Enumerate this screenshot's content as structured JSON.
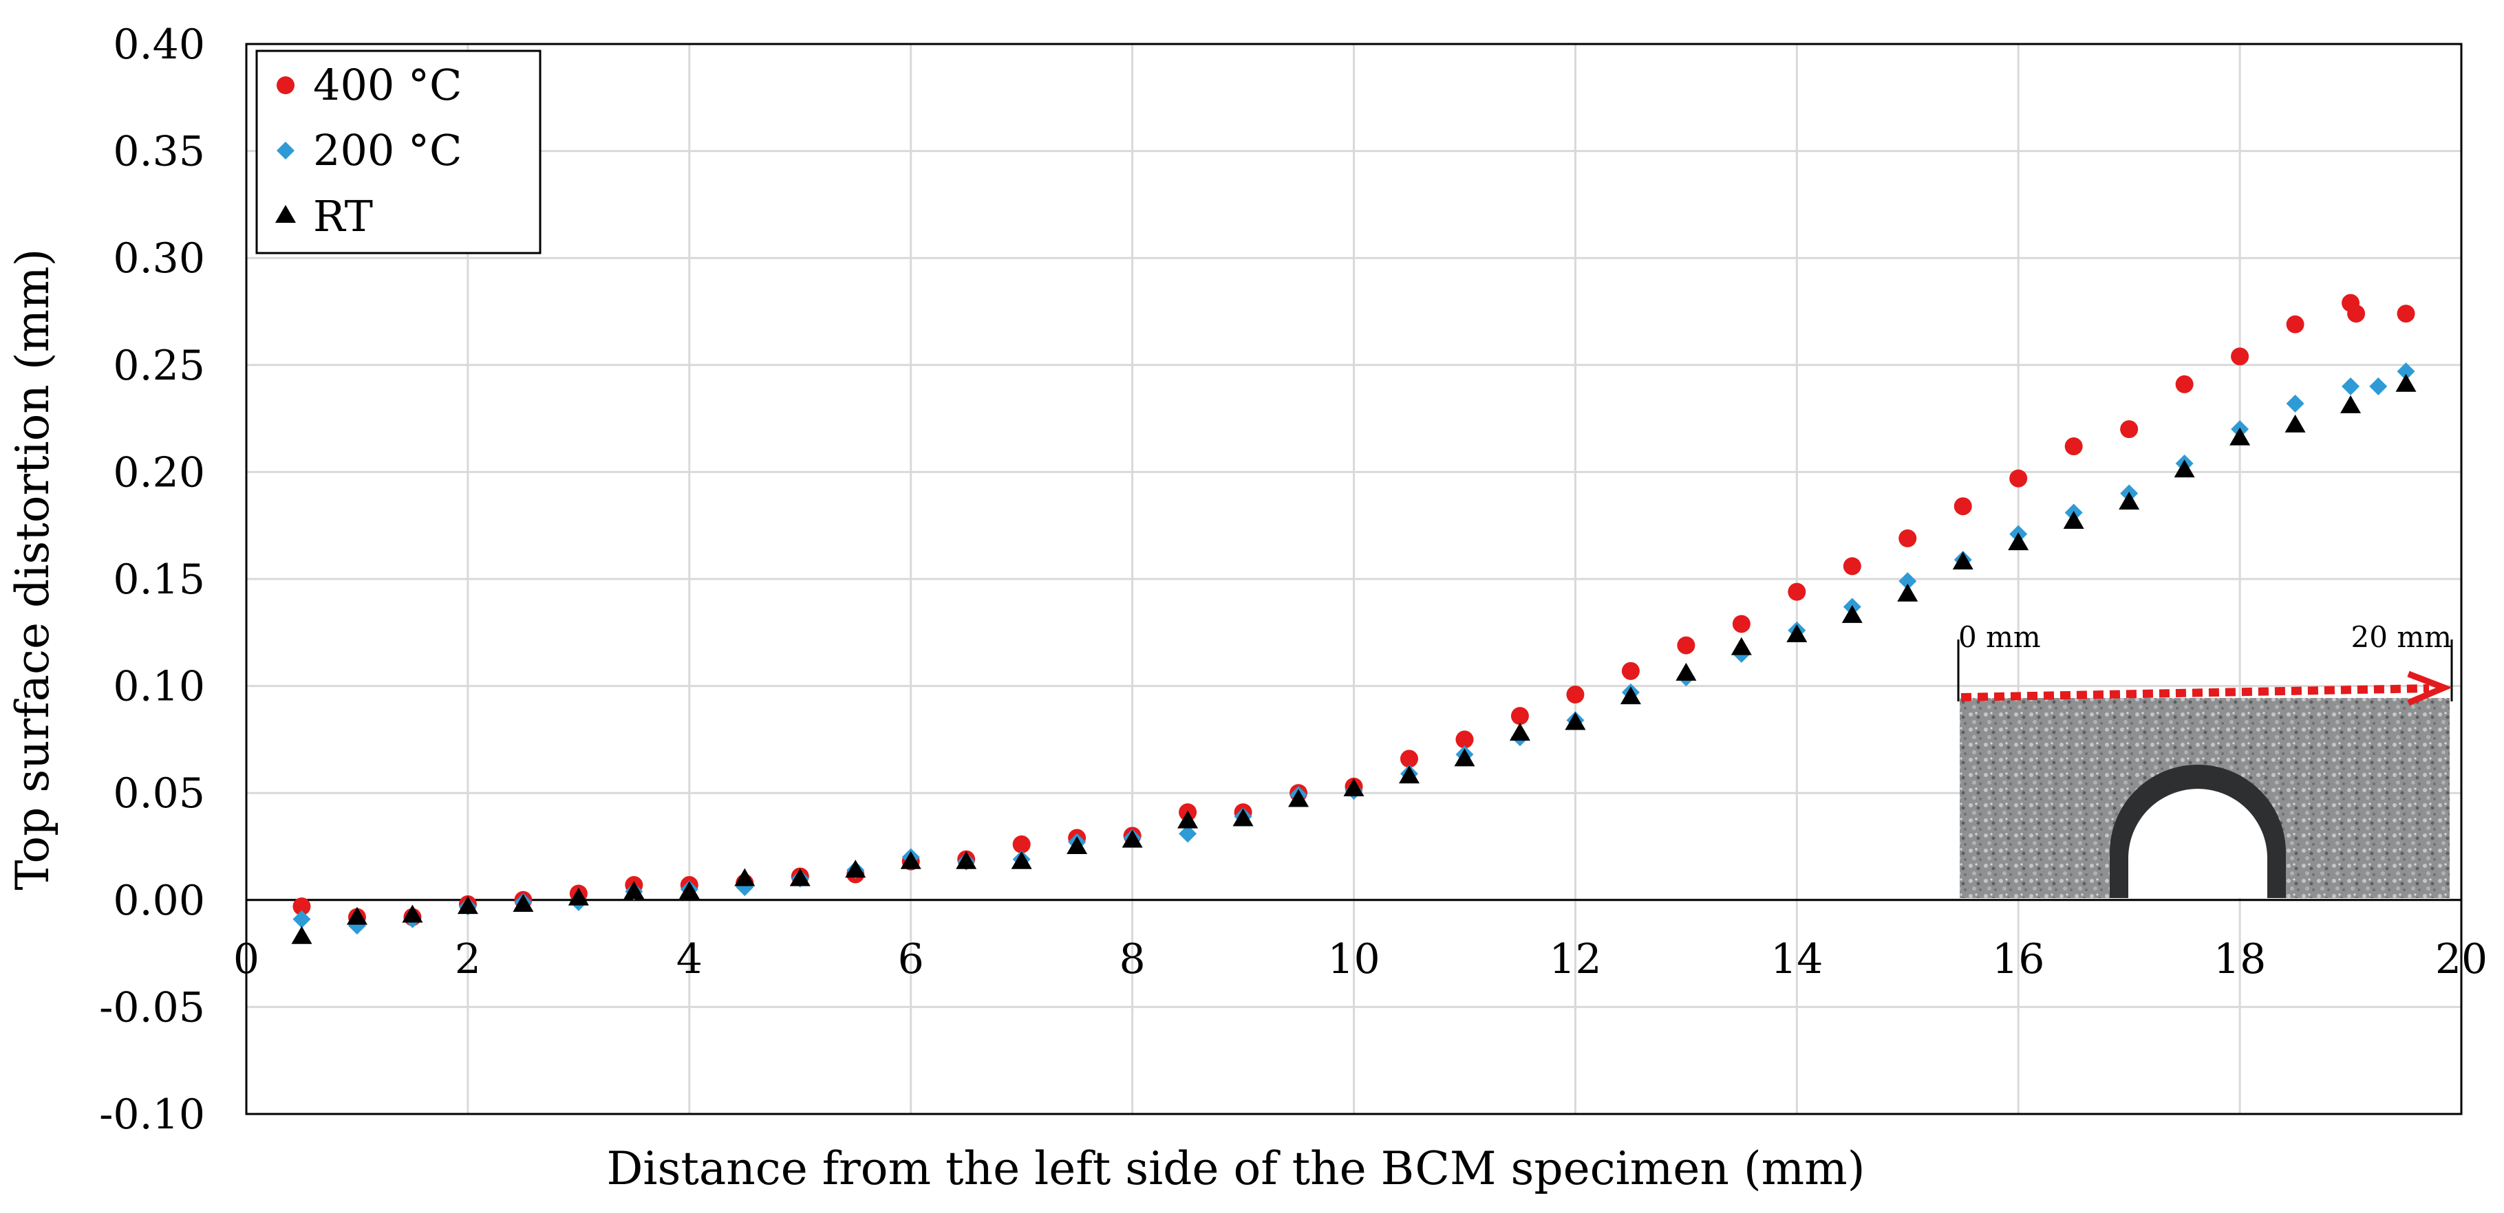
{
  "chart_data": {
    "type": "scatter",
    "title": "",
    "xlabel": "Distance from the left side of the BCM specimen (mm)",
    "ylabel": "Top surface distortion (mm)",
    "xlim": [
      0,
      20
    ],
    "ylim": [
      -0.1,
      0.4
    ],
    "x_ticks": [
      "0",
      "2",
      "4",
      "6",
      "8",
      "10",
      "12",
      "14",
      "16",
      "18",
      "20"
    ],
    "y_ticks": [
      "0.40",
      "0.35",
      "0.30",
      "0.25",
      "0.20",
      "0.15",
      "0.10",
      "0.05",
      "0.00",
      "-0.05",
      "-0.10"
    ],
    "grid": true,
    "legend_position": "top-left",
    "series": [
      {
        "name": "400 °C",
        "marker": "circle",
        "color": "#e41a1c",
        "points": [
          [
            0.5,
            -0.003
          ],
          [
            1.0,
            -0.008
          ],
          [
            1.5,
            -0.008
          ],
          [
            2.0,
            -0.002
          ],
          [
            2.5,
            0.0
          ],
          [
            3.0,
            0.003
          ],
          [
            3.5,
            0.007
          ],
          [
            4.0,
            0.007
          ],
          [
            4.5,
            0.008
          ],
          [
            5.0,
            0.011
          ],
          [
            5.5,
            0.012
          ],
          [
            6.0,
            0.018
          ],
          [
            6.5,
            0.019
          ],
          [
            7.0,
            0.026
          ],
          [
            7.5,
            0.029
          ],
          [
            8.0,
            0.03
          ],
          [
            8.5,
            0.041
          ],
          [
            9.0,
            0.041
          ],
          [
            9.5,
            0.05
          ],
          [
            10.0,
            0.053
          ],
          [
            10.5,
            0.066
          ],
          [
            11.0,
            0.075
          ],
          [
            11.5,
            0.086
          ],
          [
            12.0,
            0.096
          ],
          [
            12.5,
            0.107
          ],
          [
            13.0,
            0.119
          ],
          [
            13.5,
            0.129
          ],
          [
            14.0,
            0.144
          ],
          [
            14.5,
            0.156
          ],
          [
            15.0,
            0.169
          ],
          [
            15.5,
            0.184
          ],
          [
            16.0,
            0.197
          ],
          [
            16.5,
            0.212
          ],
          [
            17.0,
            0.22
          ],
          [
            17.5,
            0.241
          ],
          [
            18.0,
            0.254
          ],
          [
            18.5,
            0.269
          ],
          [
            19.0,
            0.279
          ],
          [
            19.05,
            0.274
          ],
          [
            19.5,
            0.274
          ]
        ]
      },
      {
        "name": "200 °C",
        "marker": "diamond",
        "color": "#2e9bd6",
        "points": [
          [
            0.5,
            -0.009
          ],
          [
            1.0,
            -0.012
          ],
          [
            1.5,
            -0.009
          ],
          [
            2.0,
            -0.003
          ],
          [
            2.5,
            -0.001
          ],
          [
            3.0,
            -0.001
          ],
          [
            3.5,
            0.004
          ],
          [
            4.0,
            0.005
          ],
          [
            4.5,
            0.006
          ],
          [
            5.0,
            0.01
          ],
          [
            5.5,
            0.014
          ],
          [
            6.0,
            0.02
          ],
          [
            6.5,
            0.018
          ],
          [
            7.0,
            0.019
          ],
          [
            7.5,
            0.027
          ],
          [
            8.0,
            0.029
          ],
          [
            8.5,
            0.031
          ],
          [
            9.0,
            0.039
          ],
          [
            9.5,
            0.049
          ],
          [
            10.0,
            0.051
          ],
          [
            10.5,
            0.059
          ],
          [
            11.0,
            0.068
          ],
          [
            11.5,
            0.076
          ],
          [
            12.0,
            0.084
          ],
          [
            12.5,
            0.097
          ],
          [
            13.0,
            0.104
          ],
          [
            13.5,
            0.115
          ],
          [
            14.0,
            0.126
          ],
          [
            14.5,
            0.137
          ],
          [
            15.0,
            0.149
          ],
          [
            15.5,
            0.159
          ],
          [
            16.0,
            0.171
          ],
          [
            16.5,
            0.181
          ],
          [
            17.0,
            0.19
          ],
          [
            17.5,
            0.204
          ],
          [
            18.0,
            0.22
          ],
          [
            18.5,
            0.232
          ],
          [
            19.0,
            0.24
          ],
          [
            19.25,
            0.24
          ],
          [
            19.5,
            0.247
          ]
        ]
      },
      {
        "name": "RT",
        "marker": "triangle",
        "color": "#000000",
        "points": [
          [
            0.5,
            -0.017
          ],
          [
            1.0,
            -0.008
          ],
          [
            1.5,
            -0.007
          ],
          [
            2.0,
            -0.003
          ],
          [
            2.5,
            -0.002
          ],
          [
            3.0,
            0.001
          ],
          [
            3.5,
            0.004
          ],
          [
            4.0,
            0.004
          ],
          [
            4.5,
            0.01
          ],
          [
            5.0,
            0.01
          ],
          [
            5.5,
            0.014
          ],
          [
            6.0,
            0.018
          ],
          [
            6.5,
            0.018
          ],
          [
            7.0,
            0.018
          ],
          [
            7.5,
            0.025
          ],
          [
            8.0,
            0.028
          ],
          [
            8.5,
            0.037
          ],
          [
            9.0,
            0.038
          ],
          [
            9.5,
            0.047
          ],
          [
            10.0,
            0.052
          ],
          [
            10.5,
            0.058
          ],
          [
            11.0,
            0.066
          ],
          [
            11.5,
            0.078
          ],
          [
            12.0,
            0.083
          ],
          [
            12.5,
            0.095
          ],
          [
            13.0,
            0.106
          ],
          [
            13.5,
            0.118
          ],
          [
            14.0,
            0.124
          ],
          [
            14.5,
            0.133
          ],
          [
            15.0,
            0.143
          ],
          [
            15.5,
            0.158
          ],
          [
            16.0,
            0.167
          ],
          [
            16.5,
            0.177
          ],
          [
            17.0,
            0.186
          ],
          [
            17.5,
            0.201
          ],
          [
            18.0,
            0.216
          ],
          [
            18.5,
            0.222
          ],
          [
            19.0,
            0.231
          ],
          [
            19.5,
            0.241
          ]
        ]
      }
    ],
    "inset": {
      "label_start": "0 mm",
      "label_end": "20 mm",
      "arrow_color": "#e41a1c"
    }
  }
}
